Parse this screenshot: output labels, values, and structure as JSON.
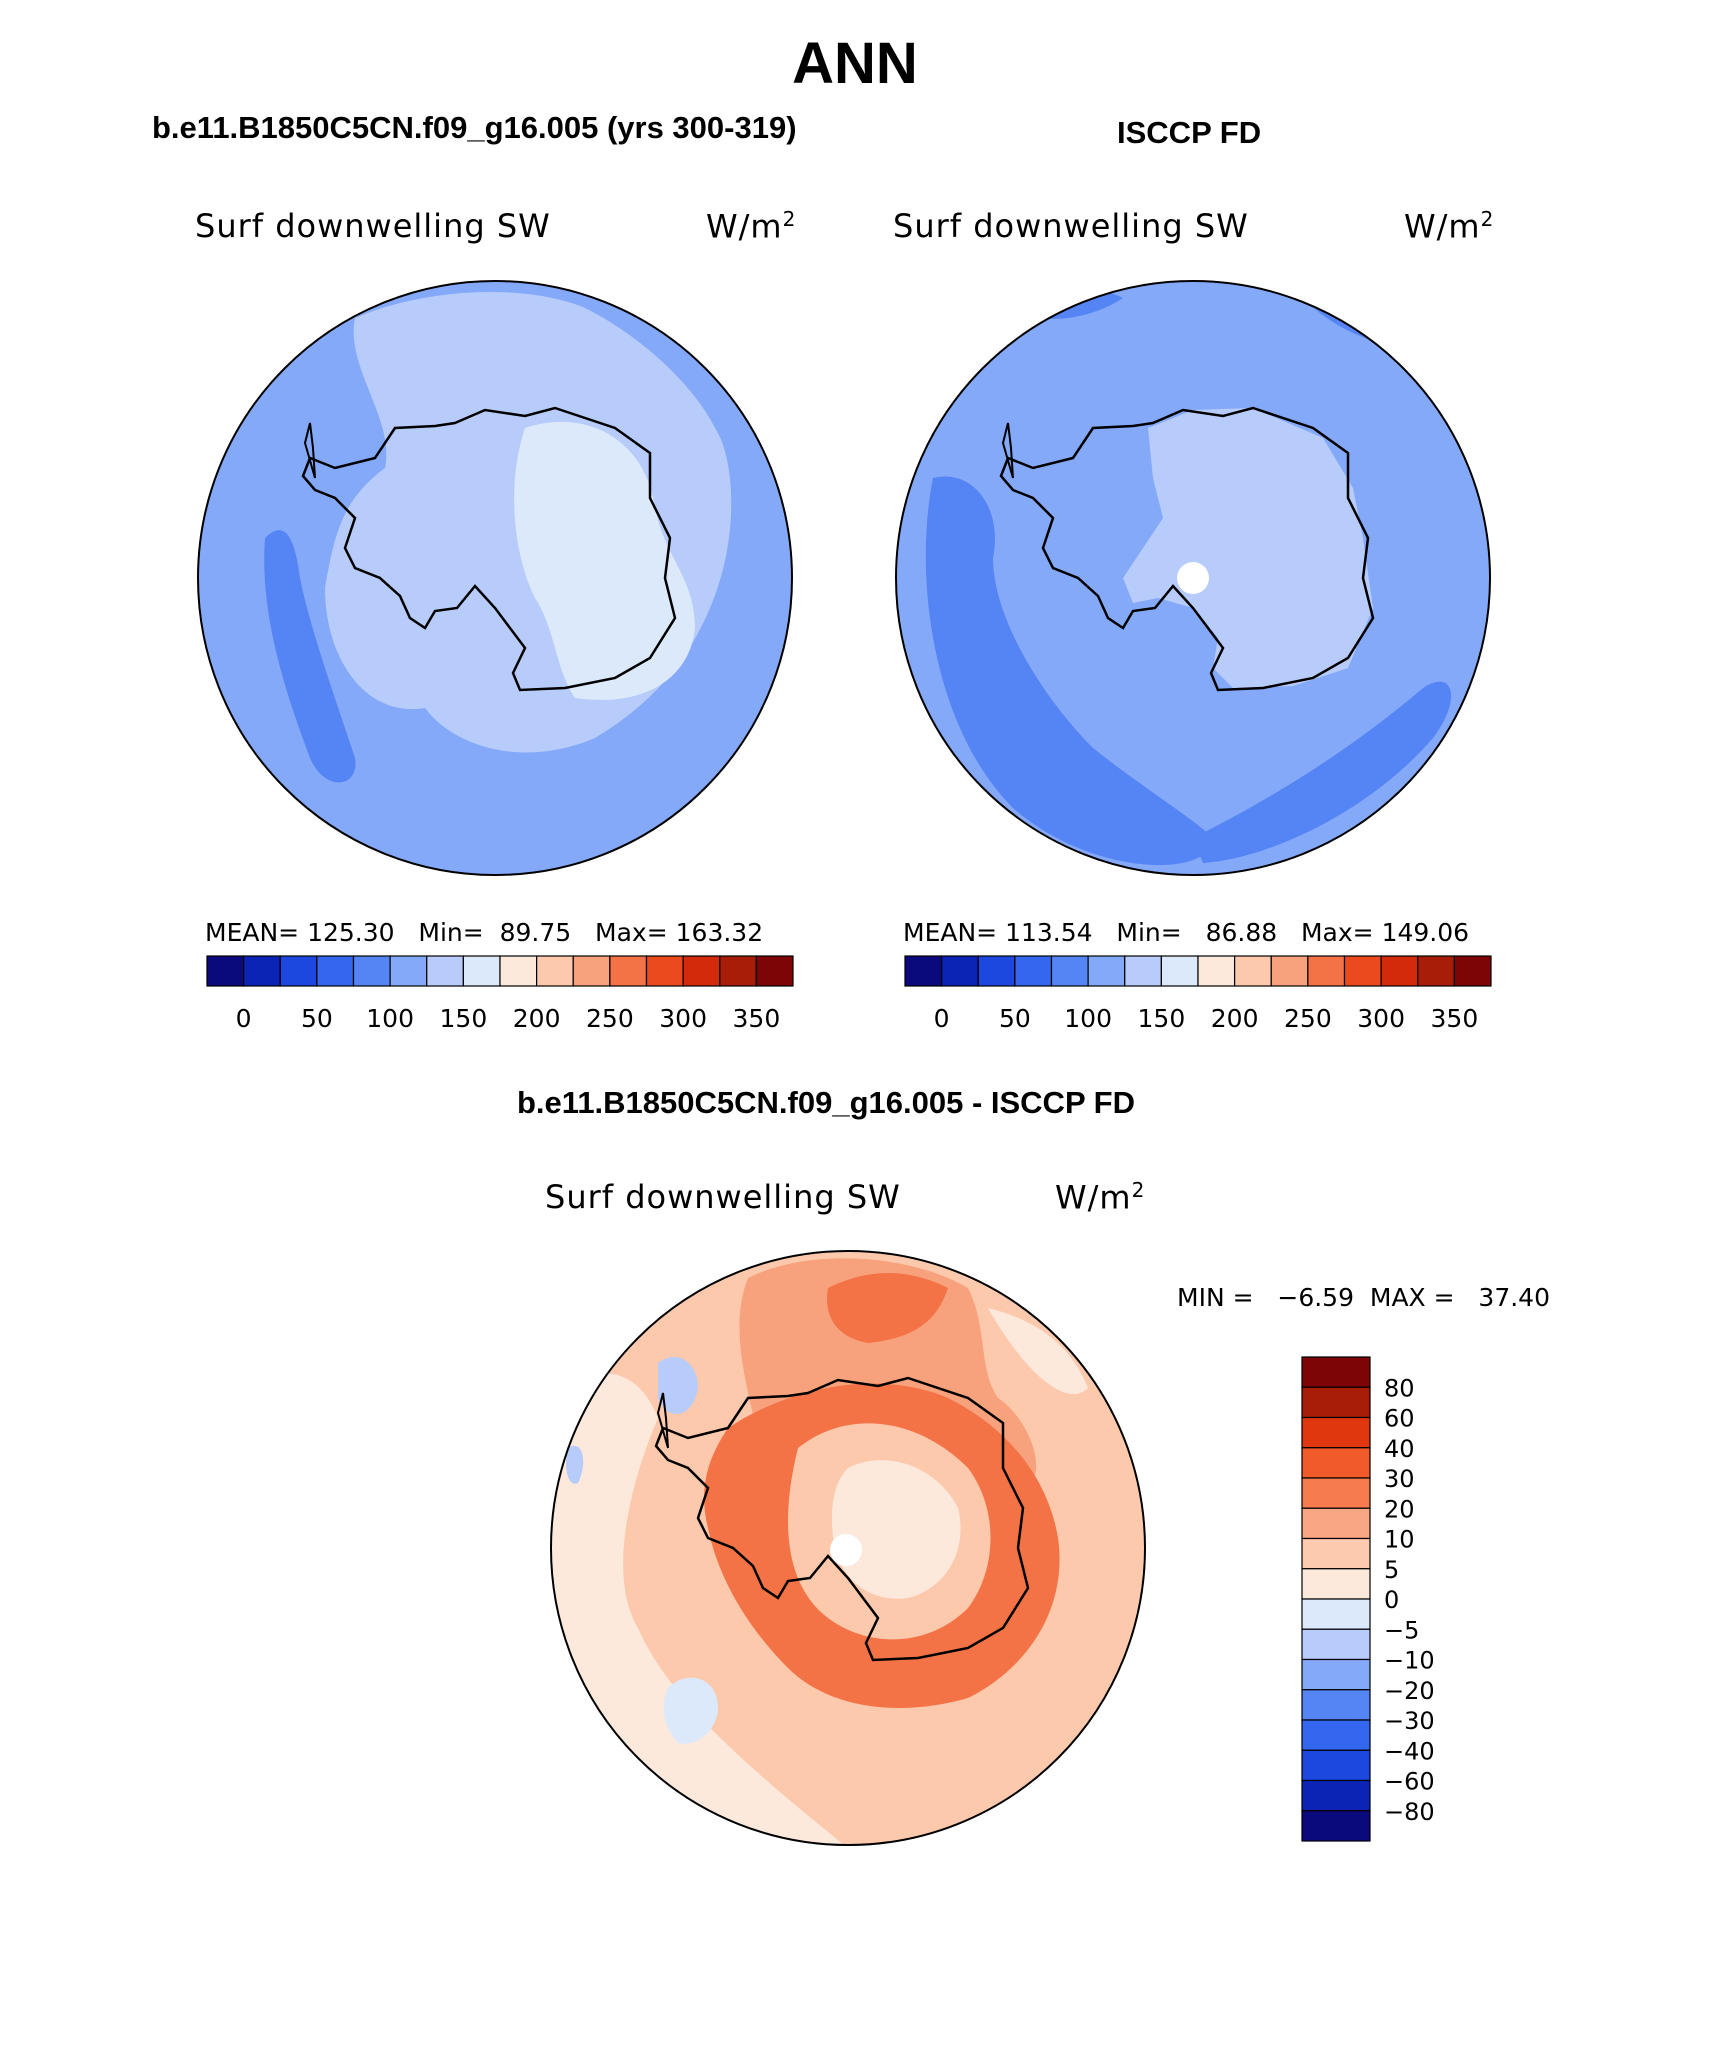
{
  "page_title": "ANN",
  "panels": {
    "model": {
      "case_title": "b.e11.B1850C5CN.f09_g16.005 (yrs 300-319)",
      "variable": "Surf downwelling SW",
      "units": "W/m",
      "units_exp": "2",
      "mean_label": "MEAN=",
      "mean": "125.30",
      "min_label": "Min=",
      "min": "89.75",
      "max_label": "Max=",
      "max": "163.32"
    },
    "obs": {
      "case_title": "ISCCP FD",
      "variable": "Surf downwelling SW",
      "units": "W/m",
      "units_exp": "2",
      "mean_label": "MEAN=",
      "mean": "113.54",
      "min_label": "Min=",
      "min": "86.88",
      "max_label": "Max=",
      "max": "149.06"
    },
    "diff": {
      "case_title": "b.e11.B1850C5CN.f09_g16.005 - ISCCP FD",
      "variable": "Surf downwelling SW",
      "units": "W/m",
      "units_exp": "2",
      "minmax": "MIN =   −6.59  MAX =   37.40"
    }
  },
  "chart_data": [
    {
      "type": "heatmap",
      "title": "b.e11.B1850C5CN.f09_g16.005 (yrs 300-319)",
      "field": "Surf downwelling SW",
      "units": "W/m2",
      "projection": "south polar stereographic",
      "mean": 125.3,
      "min": 89.75,
      "max": 163.32,
      "colorbar_levels": [
        0,
        25,
        50,
        75,
        100,
        125,
        150,
        175,
        200,
        225,
        250,
        275,
        300,
        325,
        350
      ],
      "colorbar_tick_labels": [
        "0",
        "50",
        "100",
        "150",
        "200",
        "250",
        "300",
        "350"
      ],
      "colorbar_colors": [
        "#0a0a7c",
        "#0c24b5",
        "#1c48e0",
        "#3467ee",
        "#5584f4",
        "#84a9f8",
        "#b7ccfa",
        "#dbe9fb",
        "#fde9dc",
        "#fcc9ad",
        "#f8a27d",
        "#f37346",
        "#ea4a1e",
        "#d32a0c",
        "#a81d08",
        "#7e0505"
      ]
    },
    {
      "type": "heatmap",
      "title": "ISCCP FD",
      "field": "Surf downwelling SW",
      "units": "W/m2",
      "projection": "south polar stereographic",
      "mean": 113.54,
      "min": 86.88,
      "max": 149.06,
      "colorbar_levels": [
        0,
        25,
        50,
        75,
        100,
        125,
        150,
        175,
        200,
        225,
        250,
        275,
        300,
        325,
        350
      ],
      "colorbar_tick_labels": [
        "0",
        "50",
        "100",
        "150",
        "200",
        "250",
        "300",
        "350"
      ],
      "colorbar_colors": [
        "#0a0a7c",
        "#0c24b5",
        "#1c48e0",
        "#3467ee",
        "#5584f4",
        "#84a9f8",
        "#b7ccfa",
        "#dbe9fb",
        "#fde9dc",
        "#fcc9ad",
        "#f8a27d",
        "#f37346",
        "#ea4a1e",
        "#d32a0c",
        "#a81d08",
        "#7e0505"
      ]
    },
    {
      "type": "heatmap",
      "title": "b.e11.B1850C5CN.f09_g16.005 - ISCCP FD",
      "field": "Surf downwelling SW",
      "units": "W/m2",
      "projection": "south polar stereographic",
      "min": -6.59,
      "max": 37.4,
      "colorbar_tick_labels": [
        "80",
        "60",
        "40",
        "30",
        "20",
        "10",
        "5",
        "0",
        "−5",
        "−10",
        "−20",
        "−30",
        "−40",
        "−60",
        "−80"
      ],
      "colorbar_colors_top_to_bottom": [
        "#7e0505",
        "#a81d08",
        "#e0370f",
        "#f15a2a",
        "#f67c4f",
        "#f9a783",
        "#fccbaf",
        "#fde9dc",
        "#dbe9fb",
        "#b7ccfa",
        "#84a9f8",
        "#5584f4",
        "#3467ee",
        "#1c48e0",
        "#0c24b5",
        "#0a0a7c"
      ]
    }
  ]
}
